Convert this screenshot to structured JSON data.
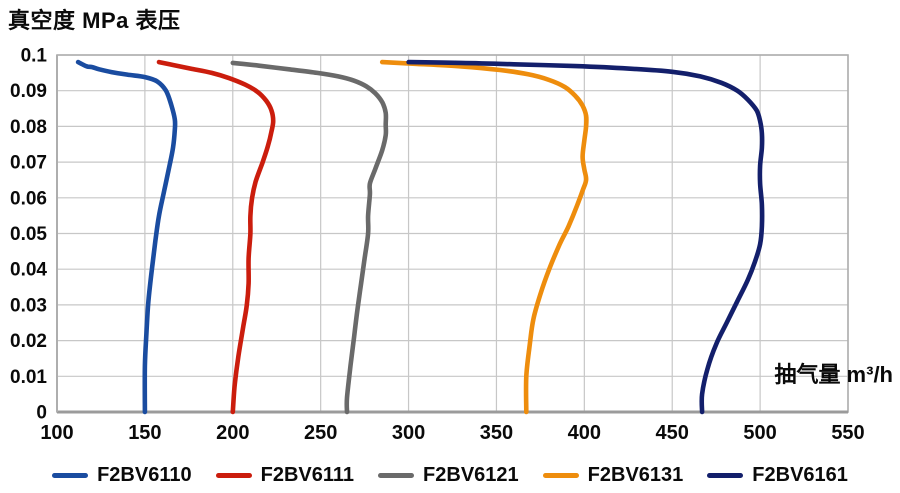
{
  "title": "真空度 MPa 表压",
  "x_axis_unit_label": "抽气量 m³/h",
  "chart_data": {
    "type": "line",
    "title": "真空度 MPa 表压",
    "xlabel": "抽气量 m³/h",
    "ylabel": "真空度 MPa 表压",
    "xlim": [
      100,
      550
    ],
    "ylim": [
      0,
      0.1
    ],
    "xticks": [
      "100",
      "150",
      "200",
      "250",
      "300",
      "350",
      "400",
      "450",
      "500",
      "550"
    ],
    "yticks": [
      "0",
      "0.01",
      "0.02",
      "0.03",
      "0.04",
      "0.05",
      "0.06",
      "0.07",
      "0.08",
      "0.09",
      "0.1"
    ],
    "grid": true,
    "legend_position": "bottom",
    "grid_color": "#c7c7c7",
    "border_color": "#aeaeae",
    "axis_color": "#9b9b9b",
    "series": [
      {
        "name": "F2BV6110",
        "color": "#1a4ca0",
        "points": [
          [
            112,
            0.098
          ],
          [
            114,
            0.0975
          ],
          [
            117,
            0.0968
          ],
          [
            120,
            0.0966
          ],
          [
            124,
            0.096
          ],
          [
            131,
            0.0952
          ],
          [
            140,
            0.0945
          ],
          [
            150,
            0.0938
          ],
          [
            157,
            0.0926
          ],
          [
            162,
            0.09
          ],
          [
            165,
            0.086
          ],
          [
            167,
            0.082
          ],
          [
            167,
            0.079
          ],
          [
            166,
            0.074
          ],
          [
            164,
            0.069
          ],
          [
            161,
            0.062
          ],
          [
            158,
            0.055
          ],
          [
            156,
            0.048
          ],
          [
            154,
            0.04
          ],
          [
            152,
            0.031
          ],
          [
            151,
            0.023
          ],
          [
            150,
            0.013
          ],
          [
            150,
            0
          ]
        ]
      },
      {
        "name": "F2BV6111",
        "color": "#cb1d0d",
        "points": [
          [
            158,
            0.098
          ],
          [
            166,
            0.0972
          ],
          [
            176,
            0.0962
          ],
          [
            188,
            0.095
          ],
          [
            198,
            0.0935
          ],
          [
            207,
            0.0917
          ],
          [
            214,
            0.0897
          ],
          [
            219,
            0.0872
          ],
          [
            222,
            0.0845
          ],
          [
            223,
            0.0815
          ],
          [
            222,
            0.0785
          ],
          [
            220,
            0.0745
          ],
          [
            217,
            0.07
          ],
          [
            213,
            0.0645
          ],
          [
            211,
            0.06
          ],
          [
            210,
            0.055
          ],
          [
            210,
            0.05
          ],
          [
            209,
            0.043
          ],
          [
            209,
            0.036
          ],
          [
            208,
            0.03
          ],
          [
            206,
            0.024
          ],
          [
            203,
            0.015
          ],
          [
            201,
            0.007
          ],
          [
            200,
            0
          ]
        ]
      },
      {
        "name": "F2BV6121",
        "color": "#6a6a6a",
        "points": [
          [
            200,
            0.0978
          ],
          [
            215,
            0.097
          ],
          [
            232,
            0.096
          ],
          [
            248,
            0.095
          ],
          [
            260,
            0.094
          ],
          [
            269,
            0.0928
          ],
          [
            276,
            0.0912
          ],
          [
            281,
            0.0893
          ],
          [
            285,
            0.0868
          ],
          [
            287,
            0.0838
          ],
          [
            287,
            0.0805
          ],
          [
            287,
            0.0775
          ],
          [
            285,
            0.0733
          ],
          [
            281,
            0.068
          ],
          [
            278,
            0.064
          ],
          [
            278,
            0.061
          ],
          [
            277,
            0.055
          ],
          [
            277,
            0.05
          ],
          [
            275,
            0.043
          ],
          [
            273,
            0.036
          ],
          [
            271,
            0.029
          ],
          [
            269,
            0.021
          ],
          [
            267,
            0.013
          ],
          [
            265,
            0.004
          ],
          [
            265,
            0
          ]
        ]
      },
      {
        "name": "F2BV6131",
        "color": "#ee8d0d",
        "points": [
          [
            285,
            0.098
          ],
          [
            305,
            0.0975
          ],
          [
            330,
            0.0968
          ],
          [
            352,
            0.0958
          ],
          [
            368,
            0.0946
          ],
          [
            380,
            0.093
          ],
          [
            389,
            0.091
          ],
          [
            395,
            0.0885
          ],
          [
            399,
            0.0858
          ],
          [
            401,
            0.083
          ],
          [
            401,
            0.08
          ],
          [
            400,
            0.076
          ],
          [
            399,
            0.0715
          ],
          [
            400,
            0.068
          ],
          [
            401,
            0.065
          ],
          [
            399,
            0.062
          ],
          [
            396,
            0.058
          ],
          [
            391,
            0.052
          ],
          [
            386,
            0.047
          ],
          [
            380,
            0.04
          ],
          [
            375,
            0.033
          ],
          [
            371,
            0.026
          ],
          [
            369,
            0.019
          ],
          [
            367,
            0.01
          ],
          [
            367,
            0
          ]
        ]
      },
      {
        "name": "F2BV6161",
        "color": "#131f6b",
        "points": [
          [
            300,
            0.098
          ],
          [
            330,
            0.0978
          ],
          [
            360,
            0.0974
          ],
          [
            395,
            0.0969
          ],
          [
            425,
            0.0962
          ],
          [
            450,
            0.0953
          ],
          [
            466,
            0.094
          ],
          [
            478,
            0.0922
          ],
          [
            487,
            0.09
          ],
          [
            493,
            0.0875
          ],
          [
            498,
            0.0845
          ],
          [
            500,
            0.0815
          ],
          [
            501,
            0.078
          ],
          [
            501,
            0.074
          ],
          [
            500,
            0.069
          ],
          [
            500,
            0.064
          ],
          [
            501,
            0.058
          ],
          [
            501,
            0.052
          ],
          [
            500,
            0.047
          ],
          [
            497,
            0.042
          ],
          [
            493,
            0.037
          ],
          [
            487,
            0.031
          ],
          [
            481,
            0.025
          ],
          [
            475,
            0.019
          ],
          [
            470,
            0.012
          ],
          [
            467,
            0.005
          ],
          [
            467,
            0
          ]
        ]
      }
    ]
  }
}
